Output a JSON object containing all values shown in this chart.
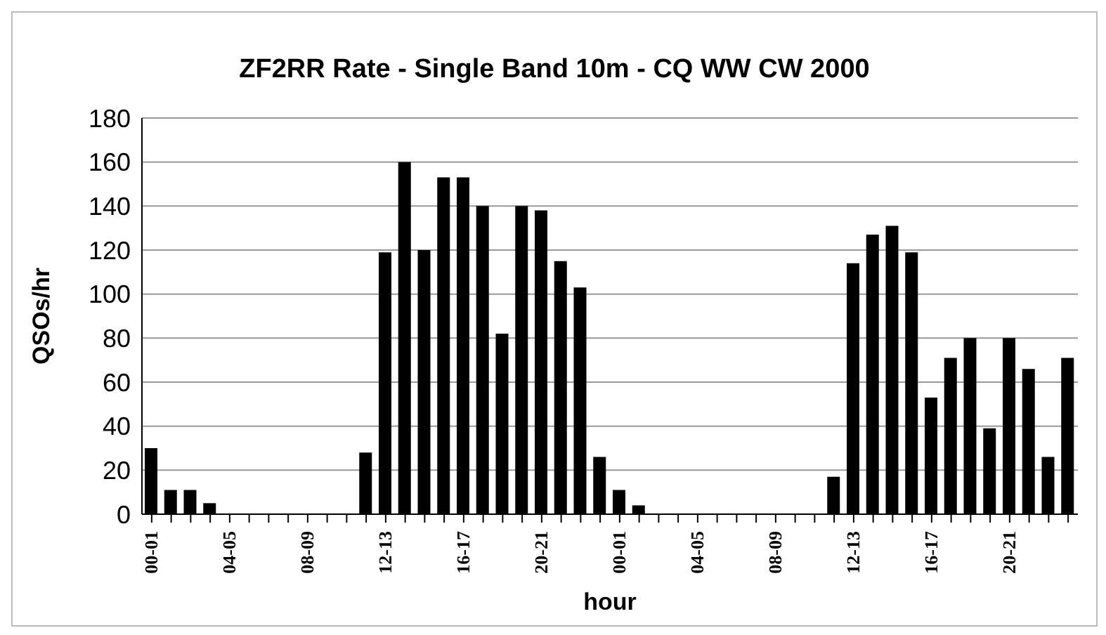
{
  "chart_data": {
    "type": "bar",
    "title": "ZF2RR Rate - Single Band 10m - CQ WW CW 2000",
    "xlabel": "hour",
    "ylabel": "QSOs/hr",
    "categories": [
      "00-01",
      null,
      null,
      null,
      "04-05",
      null,
      null,
      null,
      "08-09",
      null,
      null,
      null,
      "12-13",
      null,
      null,
      null,
      "16-17",
      null,
      null,
      null,
      "20-21",
      null,
      null,
      null,
      "00-01",
      null,
      null,
      null,
      "04-05",
      null,
      null,
      null,
      "08-09",
      null,
      null,
      null,
      "12-13",
      null,
      null,
      null,
      "16-17",
      null,
      null,
      null,
      "20-21",
      null,
      null,
      null
    ],
    "values": [
      30,
      11,
      11,
      5,
      0,
      0,
      0,
      0,
      0,
      0,
      0,
      28,
      119,
      160,
      120,
      153,
      153,
      140,
      82,
      140,
      138,
      115,
      103,
      26,
      11,
      4,
      0,
      0,
      0,
      0,
      0,
      0,
      0,
      0,
      0,
      17,
      114,
      127,
      131,
      119,
      53,
      71,
      80,
      39,
      80,
      66,
      26,
      71
    ],
    "color": "#000000",
    "ylim": [
      0,
      180
    ],
    "yticks": [
      0,
      20,
      40,
      60,
      80,
      100,
      120,
      140,
      160,
      180
    ],
    "grid": "y"
  }
}
